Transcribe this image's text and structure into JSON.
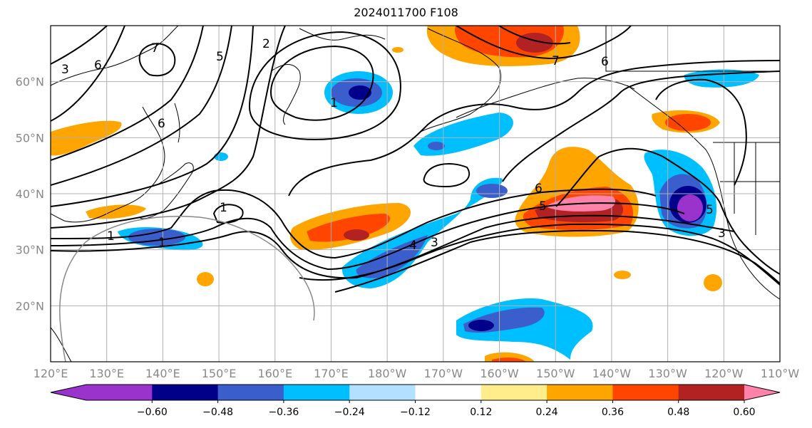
{
  "title": "2024011700 F108",
  "map": {
    "lon_range": [
      120,
      250
    ],
    "lat_range": [
      10,
      70
    ],
    "lon_ticks": [
      {
        "value": 120,
        "label": "120°E"
      },
      {
        "value": 130,
        "label": "130°E"
      },
      {
        "value": 140,
        "label": "140°E"
      },
      {
        "value": 150,
        "label": "150°E"
      },
      {
        "value": 160,
        "label": "160°E"
      },
      {
        "value": 170,
        "label": "170°E"
      },
      {
        "value": 180,
        "label": "180°W"
      },
      {
        "value": 190,
        "label": "170°W"
      },
      {
        "value": 200,
        "label": "160°W"
      },
      {
        "value": 210,
        "label": "150°W"
      },
      {
        "value": 220,
        "label": "140°W"
      },
      {
        "value": 230,
        "label": "130°W"
      },
      {
        "value": 240,
        "label": "120°W"
      },
      {
        "value": 250,
        "label": "110°W"
      }
    ],
    "lat_ticks": [
      {
        "value": 20,
        "label": "20°N"
      },
      {
        "value": 30,
        "label": "30°N"
      },
      {
        "value": 40,
        "label": "40°N"
      },
      {
        "value": 50,
        "label": "50°N"
      },
      {
        "value": 60,
        "label": "60°N"
      }
    ],
    "gridlines": true
  },
  "colorbar": {
    "colors": [
      "#9933cc",
      "#00008b",
      "#3a5fcd",
      "#00bfff",
      "#b2e0ff",
      "#ffffff",
      "#ffec8b",
      "#ffa500",
      "#ff4500",
      "#b22222",
      "#ff82ab"
    ],
    "under_color": "#9933cc",
    "over_color": "#ff82ab",
    "tick_labels": [
      "−0.60",
      "−0.48",
      "−0.36",
      "−0.24",
      "−0.12",
      "0.12",
      "0.24",
      "0.36",
      "0.48",
      "0.60"
    ]
  },
  "contour_labels": [
    "7",
    "6",
    "5",
    "2",
    "1",
    "1",
    "3",
    "6",
    "1",
    "1",
    "4",
    "3",
    "6",
    "5",
    "7",
    "6",
    "5",
    "3"
  ]
}
